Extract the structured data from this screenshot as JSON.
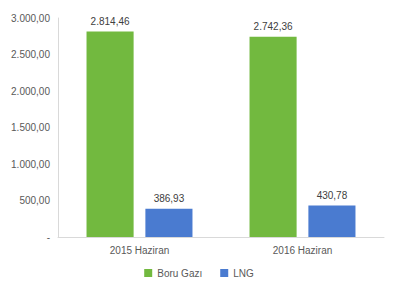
{
  "chart_data": {
    "type": "bar",
    "categories": [
      "2015 Haziran",
      "2016 Haziran"
    ],
    "series": [
      {
        "name": "Boru Gazı",
        "color": "#72b93f",
        "values": [
          2814.46,
          2742.36
        ],
        "value_labels": [
          "2.814,46",
          "2.742,36"
        ]
      },
      {
        "name": "LNG",
        "color": "#4a7bd0",
        "values": [
          386.93,
          430.78
        ],
        "value_labels": [
          "386,93",
          "430,78"
        ]
      }
    ],
    "ylim": [
      0,
      3000
    ],
    "yticks": [
      {
        "value": 0,
        "label": "-"
      },
      {
        "value": 500,
        "label": "500,00"
      },
      {
        "value": 1000,
        "label": "1.000,00"
      },
      {
        "value": 1500,
        "label": "1.500,00"
      },
      {
        "value": 2000,
        "label": "2.000,00"
      },
      {
        "value": 2500,
        "label": "2.500,00"
      },
      {
        "value": 3000,
        "label": "3.000,00"
      }
    ],
    "grid": false,
    "legend": "bottom",
    "data_labels": true
  }
}
